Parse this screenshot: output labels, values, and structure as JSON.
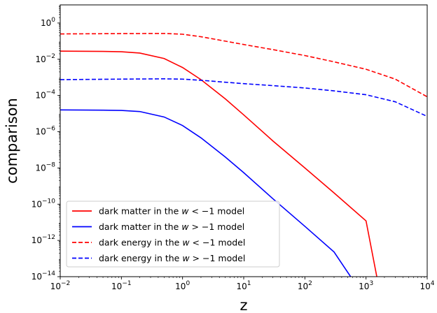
{
  "chart_data": {
    "type": "line",
    "xlabel": "z",
    "ylabel": "comparison",
    "x_scale": "log",
    "y_scale": "log",
    "xlim": [
      0.01,
      10000
    ],
    "ylim": [
      1e-14,
      10
    ],
    "grid": false,
    "legend_position": "lower-left",
    "x_ticks": [
      {
        "value": 0.01,
        "base": "10",
        "exp": "−2"
      },
      {
        "value": 0.1,
        "base": "10",
        "exp": "−1"
      },
      {
        "value": 1,
        "base": "10",
        "exp": "0"
      },
      {
        "value": 10,
        "base": "10",
        "exp": "1"
      },
      {
        "value": 100,
        "base": "10",
        "exp": "2"
      },
      {
        "value": 1000,
        "base": "10",
        "exp": "3"
      },
      {
        "value": 10000,
        "base": "10",
        "exp": "4"
      }
    ],
    "y_ticks": [
      {
        "value": 1e-14,
        "base": "10",
        "exp": "−14"
      },
      {
        "value": 1e-12,
        "base": "10",
        "exp": "−12"
      },
      {
        "value": 1e-10,
        "base": "10",
        "exp": "−10"
      },
      {
        "value": 1e-08,
        "base": "10",
        "exp": "−8"
      },
      {
        "value": 1e-06,
        "base": "10",
        "exp": "−6"
      },
      {
        "value": 0.0001,
        "base": "10",
        "exp": "−4"
      },
      {
        "value": 0.01,
        "base": "10",
        "exp": "−2"
      },
      {
        "value": 1,
        "base": "10",
        "exp": "0"
      }
    ],
    "series": [
      {
        "name": "dark matter in the w < −1 model",
        "legend_parts": [
          "dark matter in the ",
          "w",
          " < −1 model"
        ],
        "color": "#ff0000",
        "style": "solid",
        "x": [
          0.01,
          0.05,
          0.1,
          0.2,
          0.5,
          1,
          2,
          5,
          10,
          30,
          100,
          300,
          1000,
          1500
        ],
        "y": [
          0.028,
          0.027,
          0.026,
          0.022,
          0.011,
          0.0035,
          0.00075,
          6.5e-05,
          8.5e-06,
          3.1e-07,
          1e-08,
          4.2e-10,
          1.2e-11,
          1e-14
        ]
      },
      {
        "name": "dark matter in the w > −1 model",
        "legend_parts": [
          "dark matter in the ",
          "w",
          " > −1 model"
        ],
        "color": "#0000ff",
        "style": "solid",
        "x": [
          0.01,
          0.05,
          0.1,
          0.2,
          0.5,
          1,
          2,
          5,
          10,
          30,
          100,
          300,
          560
        ],
        "y": [
          1.6e-05,
          1.55e-05,
          1.5e-05,
          1.3e-05,
          6.5e-06,
          2.2e-06,
          4.6e-07,
          4e-08,
          5.5e-09,
          2e-10,
          6e-12,
          2.3e-13,
          1e-14
        ]
      },
      {
        "name": "dark energy in the w < −1 model",
        "legend_parts": [
          "dark energy in the ",
          "w",
          " < −1 model"
        ],
        "color": "#ff0000",
        "style": "dashed",
        "x": [
          0.01,
          0.1,
          0.5,
          1,
          2,
          5,
          10,
          30,
          100,
          300,
          1000,
          3000,
          10000
        ],
        "y": [
          0.25,
          0.26,
          0.265,
          0.24,
          0.175,
          0.1,
          0.065,
          0.034,
          0.016,
          0.0072,
          0.0028,
          0.0008,
          8.5e-05
        ]
      },
      {
        "name": "dark energy in the w > −1 model",
        "legend_parts": [
          "dark energy in the ",
          "w",
          " > −1 model"
        ],
        "color": "#0000ff",
        "style": "dashed",
        "x": [
          0.01,
          0.1,
          0.5,
          1,
          2,
          5,
          10,
          30,
          100,
          300,
          1000,
          3000,
          10000
        ],
        "y": [
          0.00075,
          0.0008,
          0.00083,
          0.0008,
          0.00069,
          0.00054,
          0.00045,
          0.00035,
          0.00026,
          0.00018,
          0.00011,
          4.5e-05,
          7e-06
        ]
      }
    ]
  }
}
